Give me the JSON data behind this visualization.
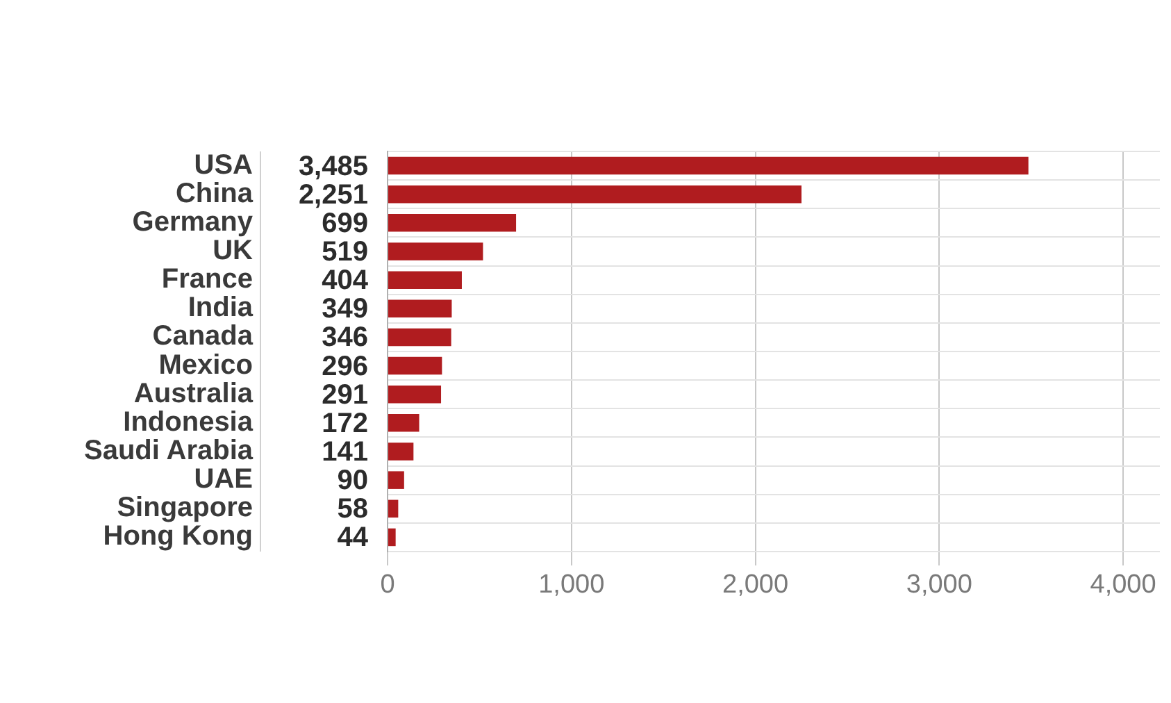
{
  "chart_data": {
    "type": "bar",
    "orientation": "horizontal",
    "categories": [
      "USA",
      "China",
      "Germany",
      "UK",
      "France",
      "India",
      "Canada",
      "Mexico",
      "Australia",
      "Indonesia",
      "Saudi Arabia",
      "UAE",
      "Singapore",
      "Hong Kong"
    ],
    "values": [
      3485,
      2251,
      699,
      519,
      404,
      349,
      346,
      296,
      291,
      172,
      141,
      90,
      58,
      44
    ],
    "value_labels": [
      "3,485",
      "2,251",
      "699",
      "519",
      "404",
      "349",
      "346",
      "296",
      "291",
      "172",
      "141",
      "90",
      "58",
      "44"
    ],
    "color": "#b01c1f",
    "xlim": [
      0,
      4200
    ],
    "xticks": [
      {
        "value": 0,
        "label": "0"
      },
      {
        "value": 1000,
        "label": "1,000"
      },
      {
        "value": 2000,
        "label": "2,000"
      },
      {
        "value": 3000,
        "label": "3,000"
      },
      {
        "value": 4000,
        "label": "4,000"
      }
    ],
    "grid": true,
    "legend": false
  }
}
